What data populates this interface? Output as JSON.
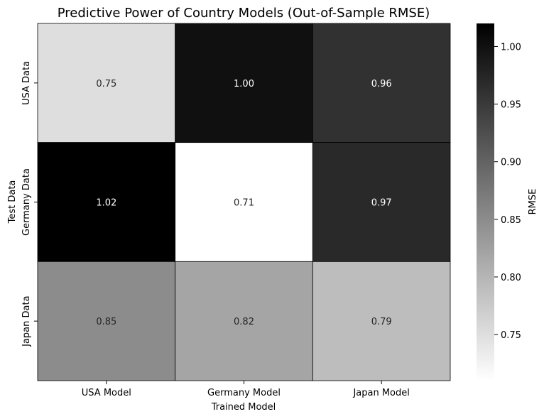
{
  "chart_data": {
    "type": "heatmap",
    "title": "Predictive Power of Country Models (Out-of-Sample RMSE)",
    "xlabel": "Trained Model",
    "ylabel": "Test Data",
    "x_categories": [
      "USA Model",
      "Germany Model",
      "Japan Model"
    ],
    "y_categories": [
      "USA Data",
      "Germany Data",
      "Japan Data"
    ],
    "values": [
      [
        0.75,
        1.0,
        0.96
      ],
      [
        1.02,
        0.71,
        0.97
      ],
      [
        0.85,
        0.82,
        0.79
      ]
    ],
    "value_labels": [
      [
        "0.75",
        "1.00",
        "0.96"
      ],
      [
        "1.02",
        "0.71",
        "0.97"
      ],
      [
        "0.85",
        "0.82",
        "0.79"
      ]
    ],
    "colorbar": {
      "label": "RMSE",
      "range": [
        0.71,
        1.02
      ],
      "ticks": [
        0.75,
        0.8,
        0.85,
        0.9,
        0.95,
        1.0
      ],
      "tick_labels": [
        "0.75",
        "0.80",
        "0.85",
        "0.90",
        "0.95",
        "1.00"
      ],
      "colormap": "Greys"
    }
  }
}
